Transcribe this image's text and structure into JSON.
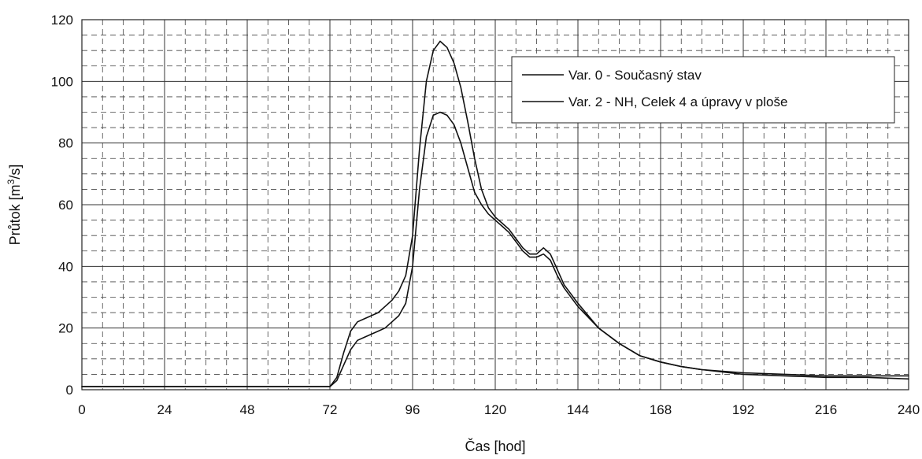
{
  "chart_data": {
    "type": "line",
    "xlabel": "Čas [hod]",
    "ylabel_main": "Průtok [m",
    "ylabel_sup": "3",
    "ylabel_end": "/s]",
    "xlim": [
      0,
      240
    ],
    "ylim": [
      0,
      120
    ],
    "x_ticks": [
      "0",
      "24",
      "48",
      "72",
      "96",
      "120",
      "144",
      "168",
      "192",
      "216",
      "240"
    ],
    "y_ticks": [
      "0",
      "20",
      "40",
      "60",
      "80",
      "100",
      "120"
    ],
    "grid": true,
    "legend_position": "top-right",
    "series": [
      {
        "name": "Var. 0 - Současný stav",
        "x": [
          0,
          24,
          48,
          72,
          74,
          76,
          78,
          80,
          82,
          84,
          86,
          88,
          90,
          92,
          94,
          96,
          98,
          100,
          102,
          104,
          106,
          108,
          110,
          112,
          114,
          116,
          118,
          120,
          122,
          124,
          126,
          128,
          130,
          132,
          134,
          136,
          138,
          140,
          144,
          150,
          156,
          162,
          168,
          174,
          180,
          192,
          204,
          216,
          228,
          240
        ],
        "y": [
          1,
          1,
          1,
          1,
          3,
          8,
          13,
          16,
          17,
          18,
          19,
          20,
          22,
          24,
          28,
          40,
          65,
          82,
          89,
          90,
          89,
          86,
          80,
          72,
          64,
          60,
          57,
          55,
          53,
          51,
          48,
          45,
          43,
          43,
          44,
          42,
          37,
          33,
          27,
          20,
          15,
          11,
          9,
          7.5,
          6.5,
          5,
          4.5,
          4,
          4,
          3.5
        ]
      },
      {
        "name": "Var. 2 - NH, Celek 4 a úpravy v ploše",
        "x": [
          0,
          24,
          48,
          72,
          74,
          76,
          78,
          80,
          82,
          84,
          86,
          88,
          90,
          92,
          94,
          96,
          98,
          100,
          102,
          104,
          106,
          108,
          110,
          112,
          114,
          116,
          118,
          120,
          122,
          124,
          126,
          128,
          130,
          132,
          134,
          136,
          138,
          140,
          144,
          150,
          156,
          162,
          168,
          174,
          180,
          192,
          204,
          216,
          228,
          240
        ],
        "y": [
          1,
          1,
          1,
          1,
          4,
          12,
          19,
          22,
          23,
          24,
          25,
          27,
          29,
          32,
          37,
          50,
          78,
          100,
          110,
          113,
          111,
          106,
          98,
          87,
          75,
          65,
          59,
          56,
          54,
          52,
          49,
          46,
          44,
          44,
          46,
          44,
          39,
          34,
          28,
          20,
          15,
          11,
          9,
          7.5,
          6.5,
          5.5,
          5,
          4.5,
          4.5,
          4.5
        ]
      }
    ]
  }
}
